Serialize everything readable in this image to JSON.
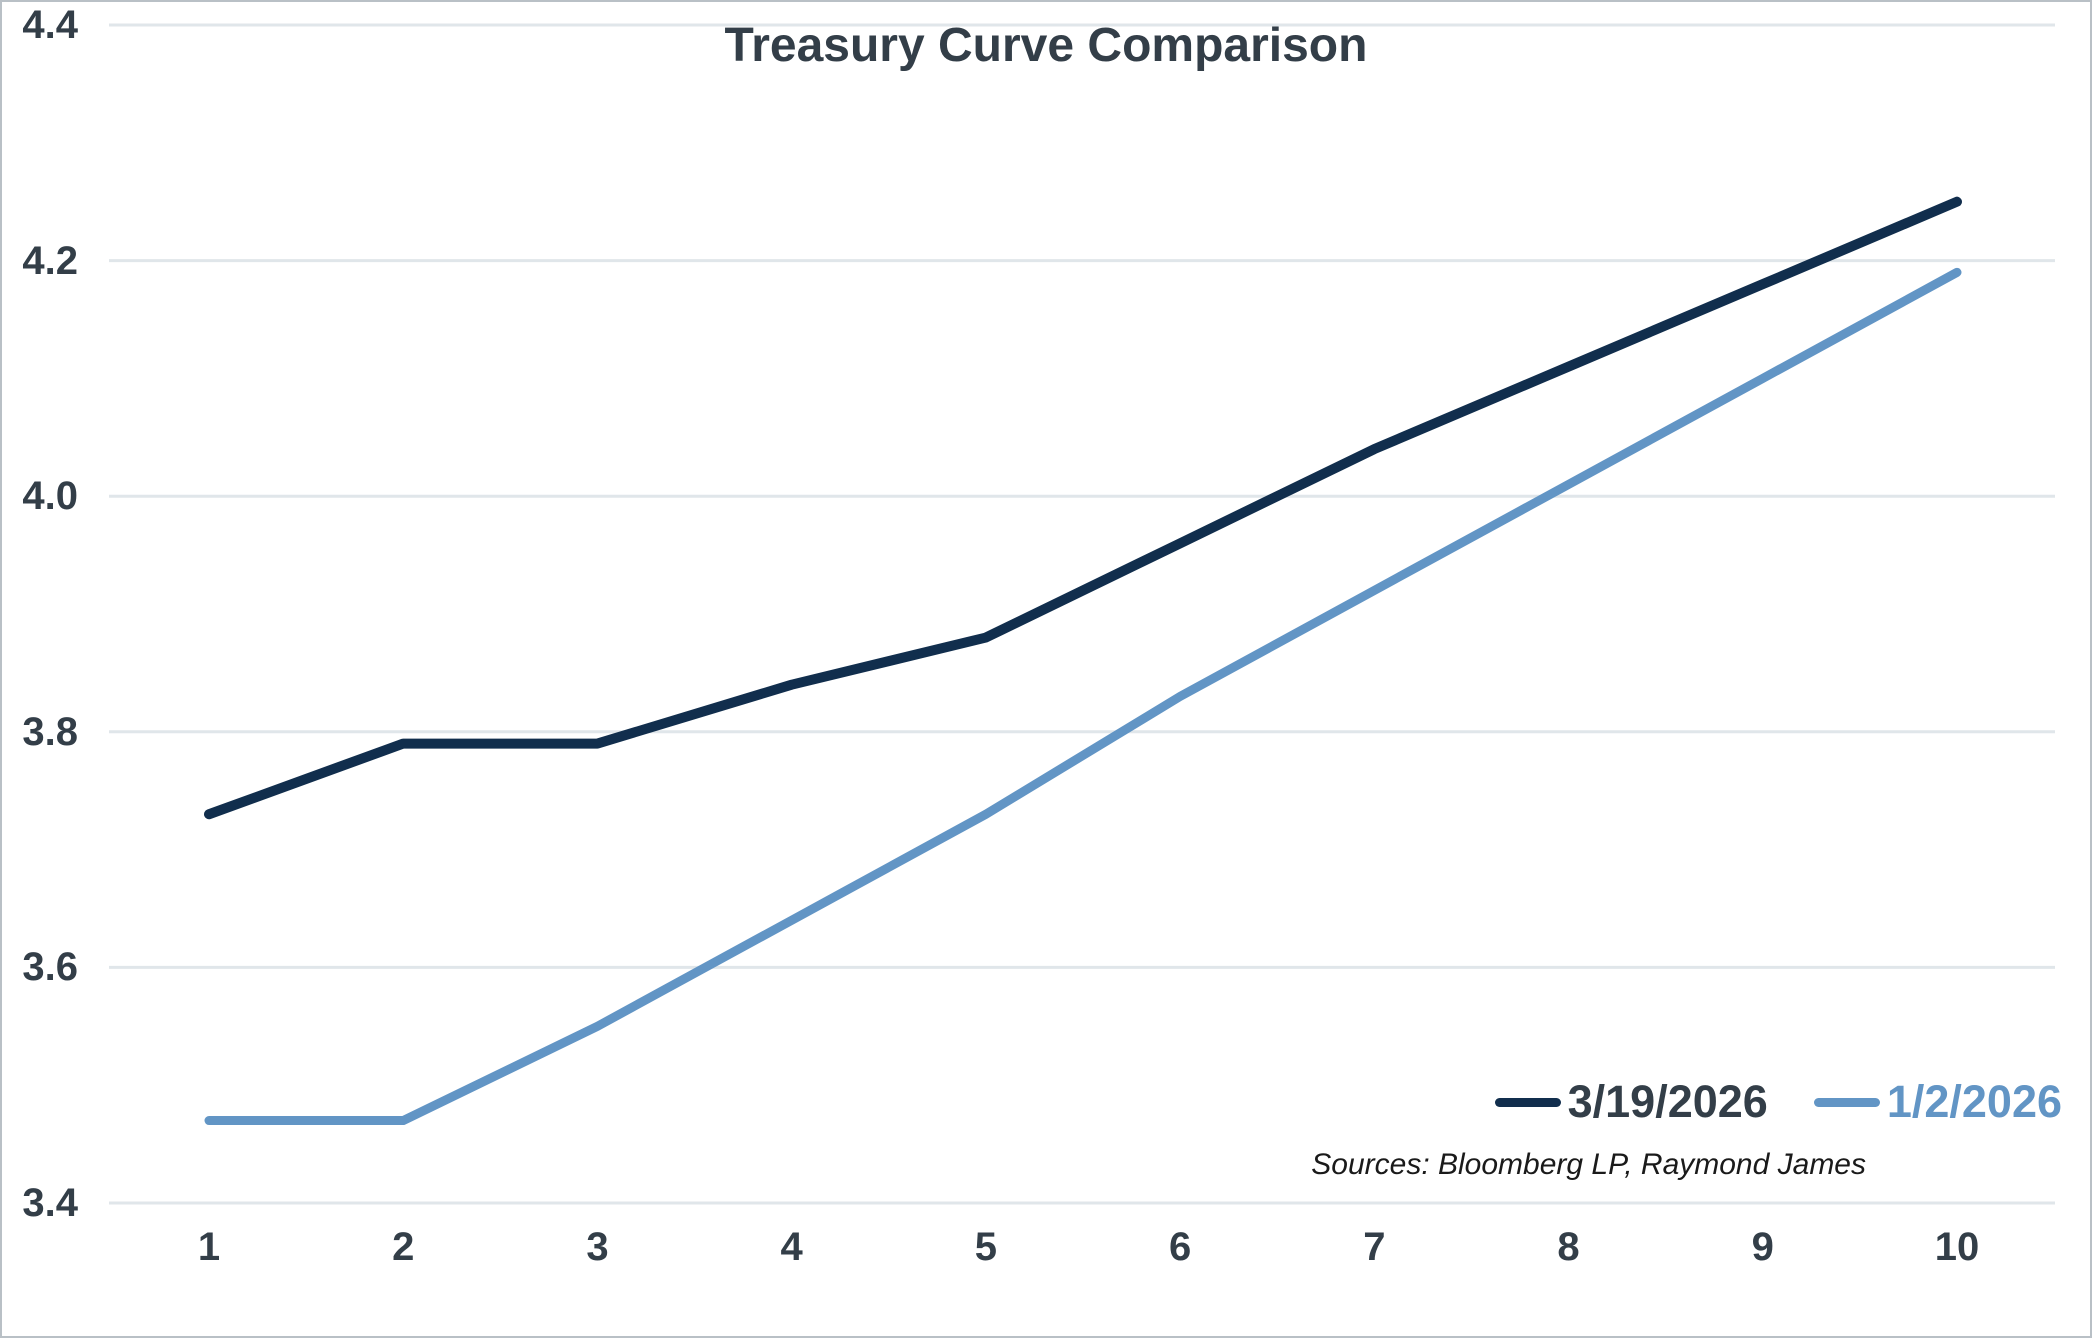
{
  "chart_data": {
    "type": "line",
    "title": "Treasury Curve Comparison",
    "xlabel": "",
    "ylabel": "",
    "x_tick_labels": [
      "1",
      "2",
      "3",
      "4",
      "5",
      "6",
      "7",
      "8",
      "9",
      "10"
    ],
    "y_tick_labels": [
      "3.4",
      "3.6",
      "3.8",
      "4.0",
      "4.2",
      "4.4"
    ],
    "y_tick_values": [
      3.4,
      3.6,
      3.8,
      4.0,
      4.2,
      4.4
    ],
    "ylim": [
      3.4,
      4.4
    ],
    "grid": "horizontal",
    "legend_position": "inside-bottom-right",
    "categories": [
      1,
      2,
      3,
      4,
      5,
      6,
      7,
      8,
      9,
      10
    ],
    "series": [
      {
        "name": "3/19/2026",
        "color": "#112e4d",
        "label_color": "#333e48",
        "values": [
          3.73,
          3.79,
          3.79,
          3.84,
          3.88,
          3.96,
          4.04,
          4.11,
          4.18,
          4.25
        ]
      },
      {
        "name": "1/2/2026",
        "color": "#6295c5",
        "label_color": "#6295c5",
        "values": [
          3.47,
          3.47,
          3.55,
          3.64,
          3.73,
          3.83,
          3.92,
          4.01,
          4.1,
          4.19
        ]
      }
    ],
    "source_note": "Sources: Bloomberg LP, Raymond James",
    "gridline_color": "#e0e6ea",
    "text_color": "#333e48"
  }
}
